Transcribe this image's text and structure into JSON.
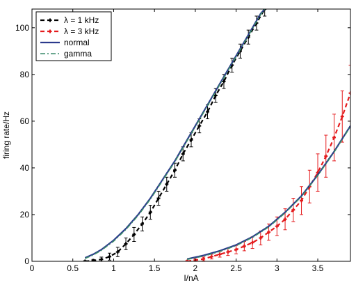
{
  "chart_data": {
    "type": "line",
    "xlabel": "I/nA",
    "ylabel": "firing rate/Hz",
    "xlim": [
      0,
      3.9
    ],
    "ylim": [
      0,
      108
    ],
    "xticks": [
      "0",
      "0.5",
      "1",
      "1.5",
      "2",
      "2.5",
      "3",
      "3.5"
    ],
    "xtick_values": [
      0,
      0.5,
      1,
      1.5,
      2,
      2.5,
      3,
      3.5
    ],
    "yticks": [
      "0",
      "20",
      "40",
      "60",
      "80",
      "100"
    ],
    "ytick_values": [
      0,
      20,
      40,
      60,
      80,
      100
    ],
    "grid": false,
    "legend_position": "top-left",
    "legend": [
      {
        "label": "λ = 1 kHz",
        "color": "#000000",
        "style": "dashed-marker"
      },
      {
        "label": "λ = 3 kHz",
        "color": "#e41a1c",
        "style": "dashed-marker"
      },
      {
        "label": "normal",
        "color": "#2b3a8c",
        "style": "solid"
      },
      {
        "label": "gamma",
        "color": "#3a8a6a",
        "style": "dash-dot"
      }
    ],
    "series": [
      {
        "name": "λ = 1 kHz",
        "color": "#000000",
        "points": [
          {
            "x": 0.65,
            "y": 0,
            "err": 0.3
          },
          {
            "x": 0.75,
            "y": 0.3,
            "err": 0.5
          },
          {
            "x": 0.85,
            "y": 0.8,
            "err": 1
          },
          {
            "x": 0.95,
            "y": 2,
            "err": 1.5
          },
          {
            "x": 1.05,
            "y": 4,
            "err": 2
          },
          {
            "x": 1.15,
            "y": 7.5,
            "err": 2.5
          },
          {
            "x": 1.25,
            "y": 11.5,
            "err": 3
          },
          {
            "x": 1.35,
            "y": 16,
            "err": 3
          },
          {
            "x": 1.45,
            "y": 21,
            "err": 3
          },
          {
            "x": 1.55,
            "y": 27,
            "err": 3
          },
          {
            "x": 1.65,
            "y": 33,
            "err": 3
          },
          {
            "x": 1.75,
            "y": 39,
            "err": 3
          },
          {
            "x": 1.85,
            "y": 46,
            "err": 3
          },
          {
            "x": 1.95,
            "y": 52,
            "err": 3
          },
          {
            "x": 2.05,
            "y": 58,
            "err": 3
          },
          {
            "x": 2.15,
            "y": 64,
            "err": 3
          },
          {
            "x": 2.25,
            "y": 71,
            "err": 3
          },
          {
            "x": 2.35,
            "y": 77,
            "err": 3
          },
          {
            "x": 2.45,
            "y": 84,
            "err": 3
          },
          {
            "x": 2.55,
            "y": 90,
            "err": 3
          },
          {
            "x": 2.65,
            "y": 96,
            "err": 3
          },
          {
            "x": 2.75,
            "y": 102,
            "err": 3
          },
          {
            "x": 2.85,
            "y": 108,
            "err": 3
          }
        ]
      },
      {
        "name": "λ = 3 kHz",
        "color": "#e41a1c",
        "points": [
          {
            "x": 1.9,
            "y": 0,
            "err": 0.3
          },
          {
            "x": 2.0,
            "y": 0.5,
            "err": 0.5
          },
          {
            "x": 2.1,
            "y": 1,
            "err": 0.8
          },
          {
            "x": 2.2,
            "y": 2,
            "err": 1
          },
          {
            "x": 2.3,
            "y": 3,
            "err": 1.2
          },
          {
            "x": 2.4,
            "y": 4,
            "err": 1.5
          },
          {
            "x": 2.5,
            "y": 5,
            "err": 1.8
          },
          {
            "x": 2.6,
            "y": 6.5,
            "err": 2
          },
          {
            "x": 2.7,
            "y": 8,
            "err": 2.5
          },
          {
            "x": 2.8,
            "y": 10,
            "err": 3
          },
          {
            "x": 2.9,
            "y": 12.5,
            "err": 3.5
          },
          {
            "x": 3.0,
            "y": 15,
            "err": 4
          },
          {
            "x": 3.1,
            "y": 18,
            "err": 4.5
          },
          {
            "x": 3.2,
            "y": 22,
            "err": 5
          },
          {
            "x": 3.3,
            "y": 26,
            "err": 6
          },
          {
            "x": 3.4,
            "y": 32,
            "err": 7
          },
          {
            "x": 3.5,
            "y": 38,
            "err": 8
          },
          {
            "x": 3.6,
            "y": 45,
            "err": 9
          },
          {
            "x": 3.7,
            "y": 53,
            "err": 10
          },
          {
            "x": 3.8,
            "y": 62,
            "err": 11
          },
          {
            "x": 3.9,
            "y": 72,
            "err": 12
          }
        ]
      },
      {
        "name": "normal",
        "color": "#2b3a8c",
        "curves": [
          [
            [
              0.65,
              1.5
            ],
            [
              0.75,
              3
            ],
            [
              0.85,
              5
            ],
            [
              1.0,
              9
            ],
            [
              1.15,
              14
            ],
            [
              1.3,
              20
            ],
            [
              1.45,
              27
            ],
            [
              1.6,
              35
            ],
            [
              1.75,
              43
            ],
            [
              1.9,
              52
            ],
            [
              2.05,
              61
            ],
            [
              2.2,
              70
            ],
            [
              2.35,
              79
            ],
            [
              2.5,
              88
            ],
            [
              2.65,
              97
            ],
            [
              2.8,
              106
            ],
            [
              2.85,
              108
            ]
          ],
          [
            [
              1.9,
              1
            ],
            [
              2.1,
              2.5
            ],
            [
              2.3,
              4.5
            ],
            [
              2.5,
              7
            ],
            [
              2.7,
              10.5
            ],
            [
              2.9,
              15
            ],
            [
              3.1,
              21
            ],
            [
              3.3,
              28
            ],
            [
              3.5,
              37
            ],
            [
              3.7,
              47
            ],
            [
              3.9,
              58
            ]
          ]
        ]
      },
      {
        "name": "gamma",
        "color": "#3a8a6a",
        "curves": [
          [
            [
              0.65,
              1.2
            ],
            [
              0.75,
              2.7
            ],
            [
              0.85,
              4.7
            ],
            [
              1.0,
              8.6
            ],
            [
              1.15,
              13.6
            ],
            [
              1.3,
              19.6
            ],
            [
              1.45,
              26.6
            ],
            [
              1.6,
              34.6
            ],
            [
              1.75,
              42.6
            ],
            [
              1.9,
              51.6
            ],
            [
              2.05,
              60.6
            ],
            [
              2.2,
              69.6
            ],
            [
              2.35,
              78.6
            ],
            [
              2.5,
              87.6
            ],
            [
              2.65,
              96.6
            ],
            [
              2.8,
              105.6
            ],
            [
              2.85,
              108
            ]
          ],
          [
            [
              1.9,
              0.8
            ],
            [
              2.1,
              2.2
            ],
            [
              2.3,
              4.2
            ],
            [
              2.5,
              6.7
            ],
            [
              2.7,
              10.2
            ],
            [
              2.9,
              14.7
            ],
            [
              3.1,
              20.7
            ],
            [
              3.3,
              27.7
            ],
            [
              3.5,
              36.7
            ],
            [
              3.7,
              46.7
            ],
            [
              3.9,
              57.7
            ]
          ]
        ]
      }
    ]
  }
}
